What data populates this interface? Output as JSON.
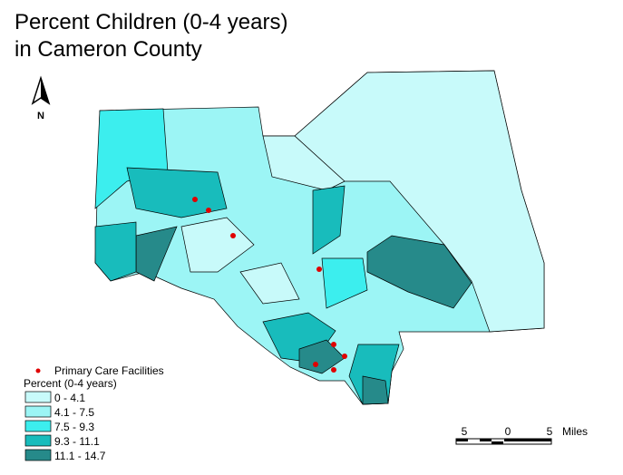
{
  "title": [
    "Percent Children (0-4 years)",
    "in Cameron County"
  ],
  "north_arrow": "N",
  "legend": {
    "point_label": "Primary Care Facilities",
    "title": "Percent (0-4 years)",
    "classes": [
      {
        "label": "0 - 4.1",
        "color": "#c8fafa"
      },
      {
        "label": "4.1 - 7.5",
        "color": "#9cf5f5"
      },
      {
        "label": "7.5 - 9.3",
        "color": "#3ceeee"
      },
      {
        "label": "9.3 - 11.1",
        "color": "#18bcbc"
      },
      {
        "label": "11.1 - 14.7",
        "color": "#268a8a"
      }
    ]
  },
  "scale_bar": {
    "labels": [
      "5",
      "0",
      "5"
    ],
    "unit": "Miles"
  }
}
